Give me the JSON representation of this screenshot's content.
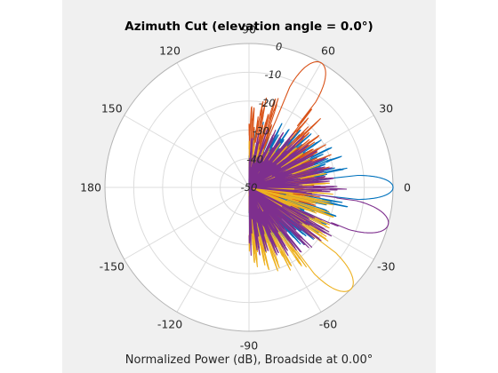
{
  "chart_data": {
    "type": "polar-line",
    "title": "Azimuth Cut (elevation angle = 0.0°)",
    "xlabel": "Normalized Power (dB), Broadside at 0.00°",
    "radial_range_db": [
      -50,
      0
    ],
    "radial_ticks": [
      {
        "value": 0,
        "label": "0"
      },
      {
        "value": -10,
        "label": "-10"
      },
      {
        "value": -20,
        "label": "-20"
      },
      {
        "value": -30,
        "label": "-30"
      },
      {
        "value": -40,
        "label": "-40"
      },
      {
        "value": -50,
        "label": "-50"
      }
    ],
    "angle_ticks": [
      {
        "deg": 0,
        "label": "0"
      },
      {
        "deg": 30,
        "label": "30"
      },
      {
        "deg": 60,
        "label": "60"
      },
      {
        "deg": 90,
        "label": "90"
      },
      {
        "deg": 120,
        "label": "120"
      },
      {
        "deg": 150,
        "label": "150"
      },
      {
        "deg": 180,
        "label": "180"
      },
      {
        "deg": -150,
        "label": "-150"
      },
      {
        "deg": -120,
        "label": "-120"
      },
      {
        "deg": -90,
        "label": "-90"
      },
      {
        "deg": -60,
        "label": "-60"
      },
      {
        "deg": -30,
        "label": "-30"
      }
    ],
    "angle_direction": "counterclockwise",
    "zero_location": "right",
    "grid": true,
    "background": "#f0f0f0",
    "series": [
      {
        "color": "#0072bd",
        "main_lobe_deg": 0,
        "beamwidth_deg": 4
      },
      {
        "color": "#d95319",
        "main_lobe_deg": 60,
        "beamwidth_deg": 5
      },
      {
        "color": "#edb120",
        "main_lobe_deg": -45,
        "beamwidth_deg": 5
      },
      {
        "color": "#7e2f8e",
        "main_lobe_deg": -15,
        "beamwidth_deg": 5
      }
    ]
  }
}
